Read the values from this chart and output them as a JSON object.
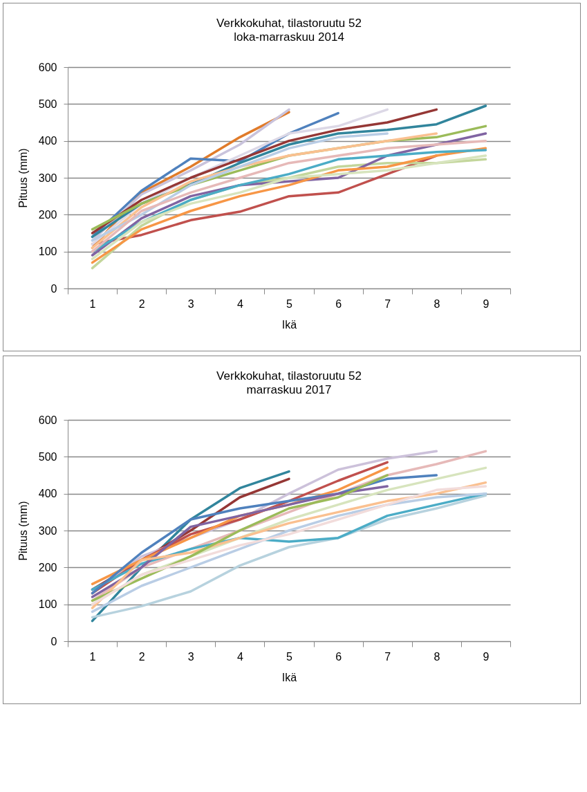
{
  "chart_data": [
    {
      "type": "line",
      "title": "Verkkokuhat, tilastoruutu 52",
      "subtitle": "loka-marraskuu 2014",
      "xlabel": "Ikä",
      "ylabel": "Pituus (mm)",
      "categories": [
        "1",
        "2",
        "3",
        "4",
        "5",
        "6",
        "7",
        "8",
        "9"
      ],
      "ylim": [
        0,
        600
      ],
      "yticks": [
        0,
        100,
        200,
        300,
        400,
        500,
        600
      ],
      "grid": "y",
      "legend": false,
      "marker": "none",
      "line_style": "solid",
      "series": [
        {
          "color": "#c0504d",
          "values": [
            120,
            145,
            185,
            208,
            250,
            260,
            310,
            360,
            null
          ]
        },
        {
          "color": "#e07b2a",
          "values": [
            110,
            260,
            330,
            410,
            478,
            null,
            null,
            null,
            null
          ]
        },
        {
          "color": "#c9c3dc",
          "values": [
            130,
            255,
            320,
            390,
            485,
            null,
            null,
            null,
            null
          ]
        },
        {
          "color": "#4f81bd",
          "values": [
            140,
            265,
            352,
            345,
            420,
            475,
            null,
            null,
            null
          ]
        },
        {
          "color": "#dcd8e6",
          "values": [
            120,
            230,
            300,
            360,
            420,
            440,
            485,
            null,
            null
          ]
        },
        {
          "color": "#953735",
          "values": [
            150,
            240,
            300,
            350,
            400,
            430,
            450,
            485,
            null
          ]
        },
        {
          "color": "#31859c",
          "values": [
            140,
            230,
            282,
            340,
            390,
            420,
            430,
            445,
            495
          ]
        },
        {
          "color": "#c3d69b",
          "values": [
            55,
            170,
            240,
            280,
            300,
            330,
            340,
            340,
            350
          ]
        },
        {
          "color": "#8064a2",
          "values": [
            90,
            190,
            250,
            280,
            290,
            300,
            360,
            390,
            420
          ]
        },
        {
          "color": "#f79646",
          "values": [
            70,
            160,
            210,
            250,
            280,
            320,
            330,
            360,
            380
          ]
        },
        {
          "color": "#4bacc6",
          "values": [
            100,
            180,
            240,
            280,
            310,
            350,
            360,
            370,
            375
          ]
        },
        {
          "color": "#9bbb59",
          "values": [
            160,
            230,
            280,
            320,
            360,
            380,
            400,
            410,
            440
          ]
        },
        {
          "color": "#fac090",
          "values": [
            110,
            220,
            290,
            330,
            360,
            380,
            400,
            420,
            null
          ]
        },
        {
          "color": "#b9cde5",
          "values": [
            130,
            200,
            280,
            330,
            380,
            410,
            420,
            null,
            null
          ]
        },
        {
          "color": "#e6b9b8",
          "values": [
            100,
            210,
            260,
            300,
            340,
            360,
            380,
            390,
            400
          ]
        },
        {
          "color": "#d7e4bd",
          "values": [
            80,
            180,
            230,
            260,
            300,
            310,
            320,
            340,
            360
          ]
        }
      ]
    },
    {
      "type": "line",
      "title": "Verkkokuhat, tilastoruutu 52",
      "subtitle": "marraskuu 2017",
      "xlabel": "Ikä",
      "ylabel": "Pituus (mm)",
      "categories": [
        "1",
        "2",
        "3",
        "4",
        "5",
        "6",
        "7",
        "8",
        "9"
      ],
      "ylim": [
        0,
        600
      ],
      "yticks": [
        0,
        100,
        200,
        300,
        400,
        500,
        600
      ],
      "grid": "y",
      "legend": false,
      "marker": "none",
      "line_style": "solid",
      "series": [
        {
          "color": "#31859c",
          "values": [
            55,
            200,
            330,
            415,
            460,
            null,
            null,
            null,
            null
          ]
        },
        {
          "color": "#953735",
          "values": [
            140,
            220,
            300,
            390,
            440,
            null,
            null,
            null,
            null
          ]
        },
        {
          "color": "#b7d2de",
          "values": [
            65,
            95,
            135,
            205,
            255,
            280,
            330,
            360,
            395
          ]
        },
        {
          "color": "#ccc1da",
          "values": [
            130,
            230,
            280,
            330,
            400,
            465,
            495,
            515,
            null
          ]
        },
        {
          "color": "#e6b9b8",
          "values": [
            110,
            200,
            250,
            300,
            350,
            400,
            450,
            480,
            515
          ]
        },
        {
          "color": "#d7e4bd",
          "values": [
            100,
            180,
            230,
            280,
            330,
            370,
            410,
            440,
            470
          ]
        },
        {
          "color": "#c0504d",
          "values": [
            130,
            220,
            290,
            330,
            380,
            435,
            485,
            null,
            null
          ]
        },
        {
          "color": "#4bacc6",
          "values": [
            140,
            210,
            250,
            280,
            270,
            280,
            340,
            370,
            400
          ]
        },
        {
          "color": "#f79646",
          "values": [
            155,
            220,
            280,
            340,
            370,
            410,
            470,
            null,
            null
          ]
        },
        {
          "color": "#4f81bd",
          "values": [
            130,
            240,
            330,
            360,
            380,
            400,
            440,
            450,
            null
          ]
        },
        {
          "color": "#8064a2",
          "values": [
            120,
            200,
            310,
            340,
            370,
            400,
            420,
            null,
            null
          ]
        },
        {
          "color": "#fac090",
          "values": [
            90,
            220,
            240,
            280,
            320,
            350,
            380,
            400,
            430
          ]
        },
        {
          "color": "#b9cde5",
          "values": [
            80,
            150,
            200,
            250,
            300,
            340,
            370,
            390,
            400
          ]
        },
        {
          "color": "#9bbb59",
          "values": [
            110,
            170,
            230,
            300,
            360,
            390,
            450,
            null,
            null
          ]
        },
        {
          "color": "#f2dcdb",
          "values": [
            100,
            180,
            220,
            260,
            290,
            330,
            370,
            410,
            420
          ]
        }
      ]
    }
  ]
}
